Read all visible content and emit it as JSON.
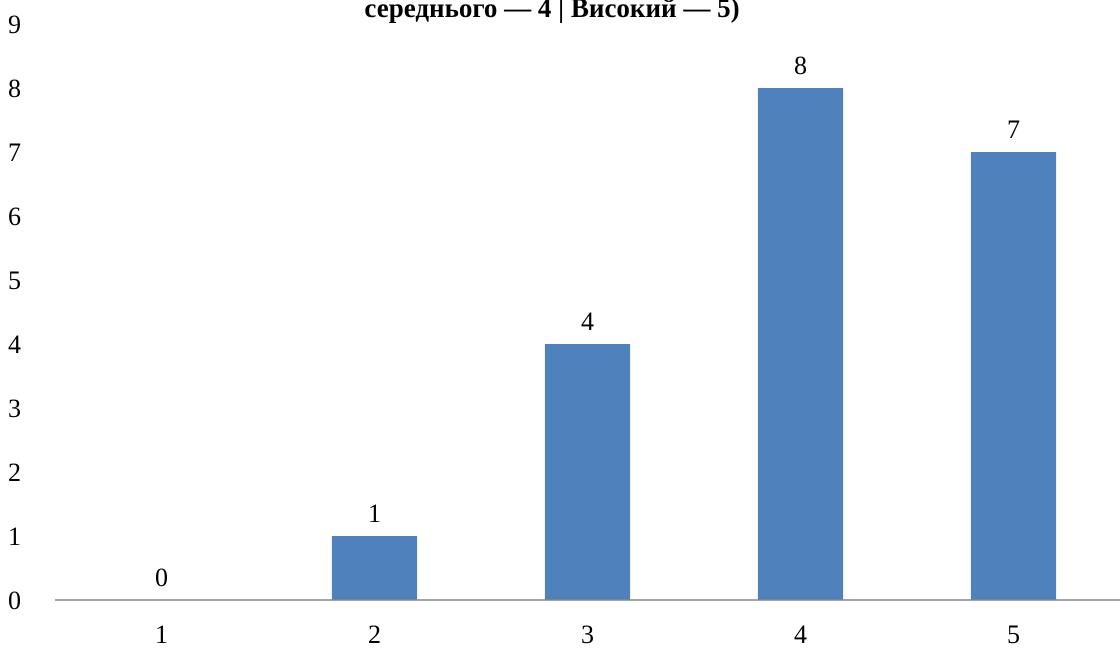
{
  "chart_data": {
    "type": "bar",
    "title": "середнього — 4 | Високий — 5)",
    "xlabel": "",
    "ylabel": "",
    "categories": [
      "1",
      "2",
      "3",
      "4",
      "5"
    ],
    "values": [
      0,
      1,
      4,
      8,
      7
    ],
    "data_labels": [
      "0",
      "1",
      "4",
      "8",
      "7"
    ],
    "ylim": [
      0,
      9
    ],
    "y_ticks": [
      "0",
      "1",
      "2",
      "3",
      "4",
      "5",
      "6",
      "7",
      "8",
      "9"
    ],
    "grid": false,
    "legend": "none",
    "colors": {
      "bar": "#4F81BD",
      "axis": "#868686",
      "text": "#000000"
    }
  }
}
